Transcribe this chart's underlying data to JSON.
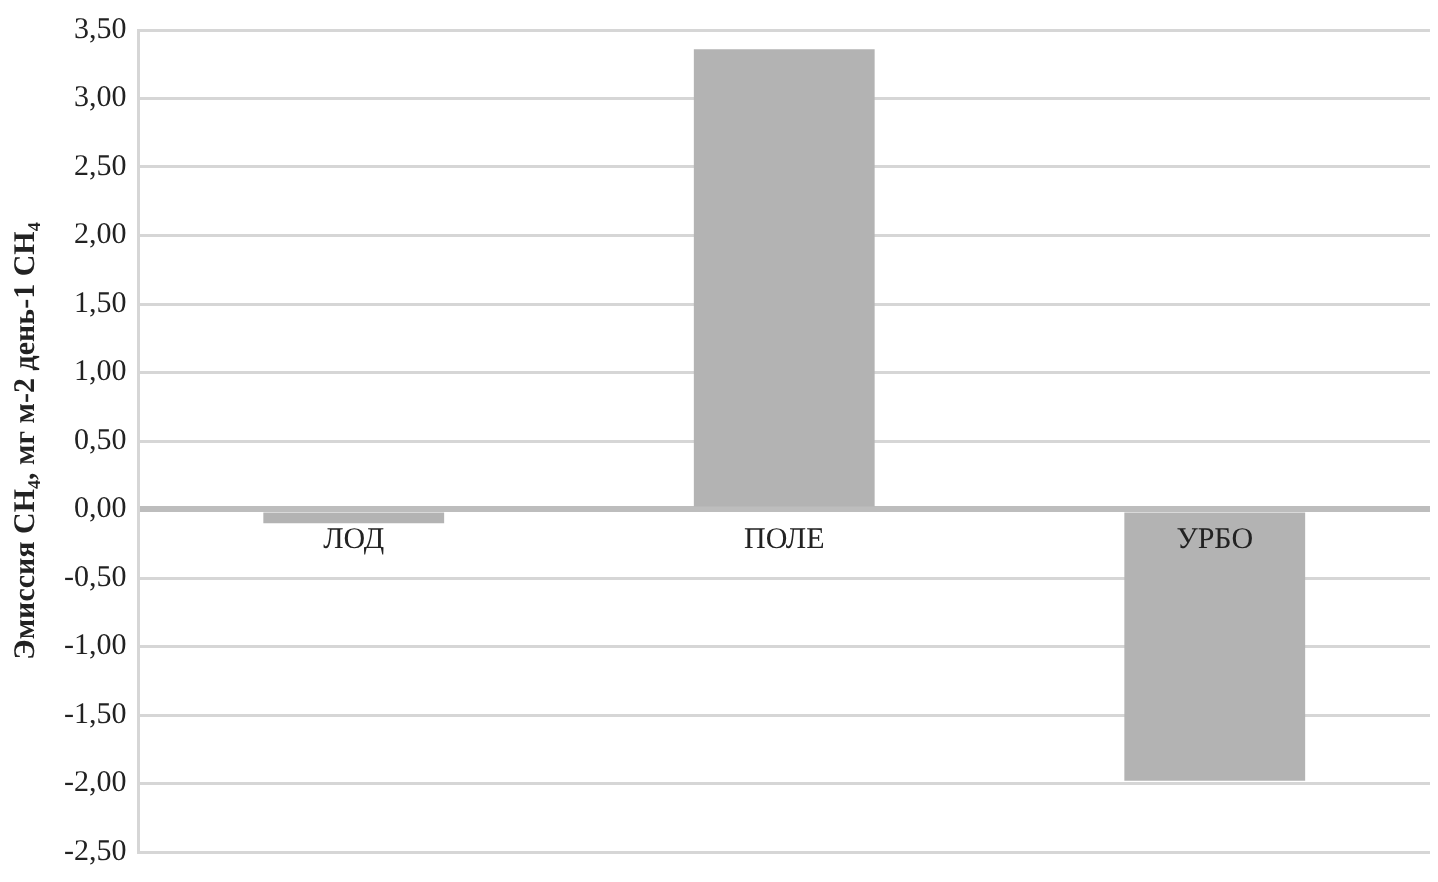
{
  "chart_data": {
    "type": "bar",
    "ylabel": "Эмиссия CH₄, мг м-2 день-1 CH₄",
    "categories": [
      "ЛОД",
      "ПОЛЕ",
      "УРБО"
    ],
    "values": [
      -0.1,
      3.36,
      -1.98
    ],
    "color": "#b3b3b3",
    "ylim": [
      -2.5,
      3.5
    ],
    "yticks": [
      {
        "value": -2.5,
        "label": "-2,50"
      },
      {
        "value": -2,
        "label": "-2,00"
      },
      {
        "value": -1.5,
        "label": "-1,50"
      },
      {
        "value": -1,
        "label": "-1,00"
      },
      {
        "value": -0.5,
        "label": "-0,50"
      },
      {
        "value": 0,
        "label": "0,00"
      },
      {
        "value": 0.5,
        "label": "0,50"
      },
      {
        "value": 1,
        "label": "1,00"
      },
      {
        "value": 1.5,
        "label": "1,50"
      },
      {
        "value": 2,
        "label": "2,00"
      },
      {
        "value": 2.5,
        "label": "2,50"
      },
      {
        "value": 3,
        "label": "3,00"
      },
      {
        "value": 3.5,
        "label": "3,50"
      }
    ],
    "grid": "y",
    "legend": false
  }
}
